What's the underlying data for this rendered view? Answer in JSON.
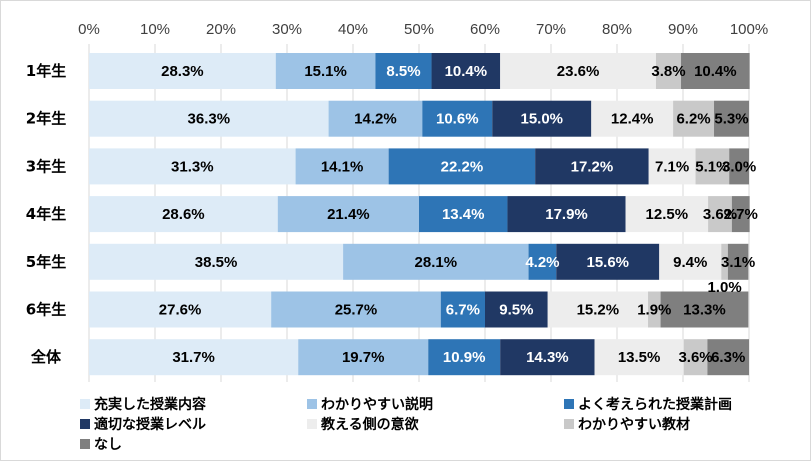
{
  "chart_data": {
    "type": "bar",
    "orientation": "horizontal",
    "stacked": true,
    "categories": [
      "1年生",
      "2年生",
      "3年生",
      "4年生",
      "5年生",
      "6年生",
      "全体"
    ],
    "xlim": [
      0,
      100
    ],
    "x_ticks": [
      "0%",
      "10%",
      "20%",
      "30%",
      "40%",
      "50%",
      "60%",
      "70%",
      "80%",
      "90%",
      "100%"
    ],
    "legend_position": "bottom",
    "grid": true,
    "series": [
      {
        "name": "充実した授業内容",
        "color": "#DDEBF7",
        "text_color": "#000000",
        "values": [
          28.3,
          36.3,
          31.3,
          28.6,
          38.5,
          27.6,
          31.7
        ],
        "labels": [
          "28.3%",
          "36.3%",
          "31.3%",
          "28.6%",
          "38.5%",
          "27.6%",
          "31.7%"
        ]
      },
      {
        "name": "わかりやすい説明",
        "color": "#9DC3E6",
        "text_color": "#000000",
        "values": [
          15.1,
          14.2,
          14.1,
          21.4,
          28.1,
          25.7,
          19.7
        ],
        "labels": [
          "15.1%",
          "14.2%",
          "14.1%",
          "21.4%",
          "28.1%",
          "25.7%",
          "19.7%"
        ]
      },
      {
        "name": "よく考えられた授業計画",
        "color": "#2E75B6",
        "text_color": "#ffffff",
        "values": [
          8.5,
          10.6,
          22.2,
          13.4,
          4.2,
          6.7,
          10.9
        ],
        "labels": [
          "8.5%",
          "10.6%",
          "22.2%",
          "13.4%",
          "4.2%",
          "6.7%",
          "10.9%"
        ]
      },
      {
        "name": "適切な授業レベル",
        "color": "#203864",
        "text_color": "#ffffff",
        "values": [
          10.4,
          15.0,
          17.2,
          17.9,
          15.6,
          9.5,
          14.3
        ],
        "labels": [
          "10.4%",
          "15.0%",
          "17.2%",
          "17.9%",
          "15.6%",
          "9.5%",
          "14.3%"
        ]
      },
      {
        "name": "教える側の意欲",
        "color": "#EDEDED",
        "text_color": "#000000",
        "values": [
          23.6,
          12.4,
          7.1,
          12.5,
          9.4,
          15.2,
          13.5
        ],
        "labels": [
          "23.6%",
          "12.4%",
          "7.1%",
          "12.5%",
          "9.4%",
          "15.2%",
          "13.5%"
        ]
      },
      {
        "name": "わかりやすい教材",
        "color": "#C9C9C9",
        "text_color": "#000000",
        "values": [
          3.8,
          6.2,
          5.1,
          3.6,
          1.0,
          1.9,
          3.6
        ],
        "labels": [
          "3.8%",
          "6.2%",
          "5.1%",
          "3.6%",
          "1.0%",
          "1.9%",
          "3.6%"
        ]
      },
      {
        "name": "なし",
        "color": "#7F7F7F",
        "text_color": "#000000",
        "values": [
          10.4,
          5.3,
          3.0,
          2.7,
          3.1,
          13.3,
          6.3
        ],
        "labels": [
          "10.4%",
          "5.3%",
          "3.0%",
          "2.7%",
          "3.1%",
          "13.3%",
          "6.3%"
        ]
      }
    ]
  }
}
